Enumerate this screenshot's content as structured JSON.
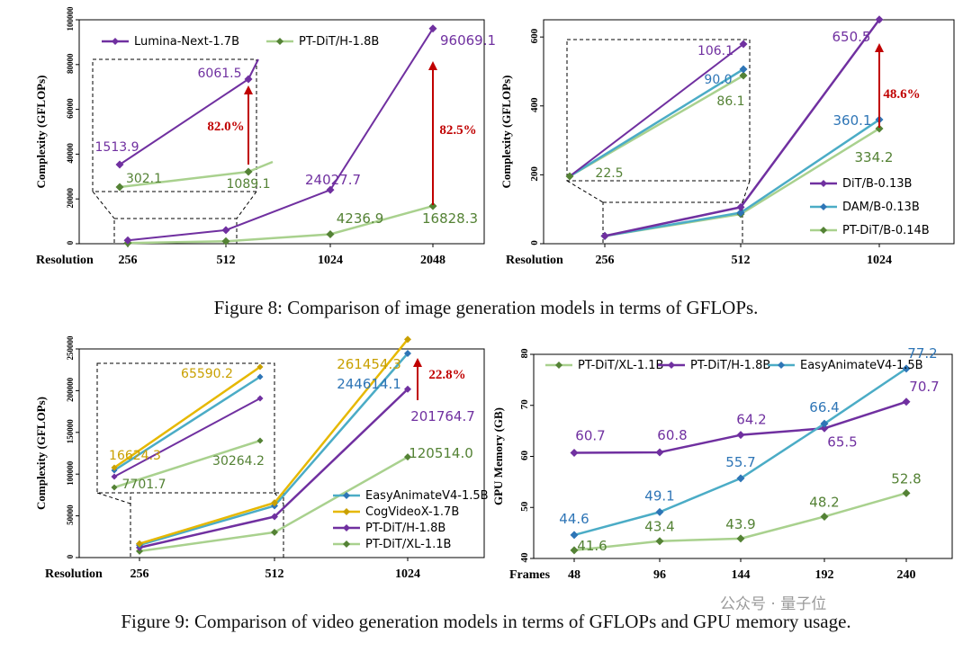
{
  "captions": {
    "fig8": "Figure 8: Comparison of image generation models in terms of GFLOPs.",
    "fig9": "Figure 9: Comparison of video generation models in terms of GFLOPs and GPU memory usage."
  },
  "watermark": {
    "text": "公众号 · 量子位"
  },
  "colors": {
    "purple": "#7030A0",
    "green": "#548235",
    "green_line": "#A9D18E",
    "blue": "#2E75B6",
    "teal_line": "#4BACC6",
    "gold": "#C9A000",
    "gold_line": "#E6B800",
    "red": "#C00000"
  },
  "chart_data": [
    {
      "id": "fig8-left",
      "type": "line",
      "ylabel": "Complexity (GFLOPs)",
      "x_axis_title": "Resolution",
      "categories": [
        "256",
        "512",
        "1024",
        "2048"
      ],
      "ylim": [
        0,
        100000
      ],
      "yticks": [
        "0",
        "20000",
        "40000",
        "60000",
        "80000",
        "100000"
      ],
      "legend_position": "top",
      "series": [
        {
          "name": "Lumina-Next-1.7B",
          "values": [
            1513.9,
            6061.5,
            24027.7,
            96069.1
          ],
          "labels": [
            "",
            "",
            "24027.7",
            "96069.1"
          ]
        },
        {
          "name": "PT-DiT/H-1.8B",
          "values": [
            302.1,
            1089.1,
            4236.9,
            16828.3
          ],
          "labels": [
            "",
            "",
            "4236.9",
            "16828.3"
          ]
        }
      ],
      "inset": {
        "purple_labels": [
          "1513.9",
          "6061.5"
        ],
        "green_labels": [
          "302.1",
          "1089.1"
        ],
        "gap_label": "82.0%"
      },
      "gap_label": "82.5%"
    },
    {
      "id": "fig8-right",
      "type": "line",
      "ylabel": "Complexity (GFLOPs)",
      "x_axis_title": "Resolution",
      "categories": [
        "256",
        "512",
        "1024"
      ],
      "ylim": [
        0,
        650
      ],
      "yticks": [
        "0",
        "200",
        "400",
        "600"
      ],
      "legend_position": "bottom-right",
      "series": [
        {
          "name": "DiT/B-0.13B",
          "values": [
            22.5,
            106.1,
            650.5
          ],
          "labels": [
            "",
            "",
            "650.5"
          ]
        },
        {
          "name": "DAM/B-0.13B",
          "values": [
            22.5,
            90.0,
            360.1
          ],
          "labels": [
            "",
            "",
            "360.1"
          ]
        },
        {
          "name": "PT-DiT/B-0.14B",
          "values": [
            22.5,
            86.1,
            334.2
          ],
          "labels": [
            "",
            "",
            "334.2"
          ]
        }
      ],
      "inset": {
        "labels": [
          "106.1",
          "90.0",
          "86.1",
          "22.5"
        ]
      },
      "gap_label": "48.6%"
    },
    {
      "id": "fig9-left",
      "type": "line",
      "ylabel": "Complexity (GFLOPs)",
      "x_axis_title": "Resolution",
      "categories": [
        "256",
        "512",
        "1024"
      ],
      "ylim": [
        0,
        250000
      ],
      "yticks": [
        "0",
        "50000",
        "100000",
        "150000",
        "200000",
        "250000"
      ],
      "legend_position": "bottom-right",
      "series": [
        {
          "name": "EasyAnimateV4-1.5B",
          "values": [
            15000,
            62000,
            244614.1
          ],
          "labels": [
            "",
            "",
            "244614.1"
          ]
        },
        {
          "name": "CogVideoX-1.7B",
          "values": [
            16624.3,
            65590.2,
            261454.3
          ],
          "labels": [
            "",
            "",
            "261454.3"
          ]
        },
        {
          "name": "PT-DiT/H-1.8B",
          "values": [
            12000,
            49000,
            201764.7
          ],
          "labels": [
            "",
            "",
            "201764.7"
          ]
        },
        {
          "name": "PT-DiT/XL-1.1B",
          "values": [
            7701.7,
            30264.2,
            120514.0
          ],
          "labels": [
            "",
            "",
            "120514.0"
          ]
        }
      ],
      "inset": {
        "labels": [
          "65590.2",
          "16624.3",
          "30264.2",
          "7701.7"
        ]
      },
      "gap_label": "22.8%"
    },
    {
      "id": "fig9-right",
      "type": "line",
      "ylabel": "GPU Memory (GB)",
      "x_axis_title": "Frames",
      "categories": [
        "48",
        "96",
        "144",
        "192",
        "240"
      ],
      "ylim": [
        40,
        80
      ],
      "yticks": [
        "40",
        "50",
        "60",
        "70",
        "80"
      ],
      "legend_position": "top",
      "series": [
        {
          "name": "PT-DiT/XL-1.1B",
          "values": [
            41.6,
            43.4,
            43.9,
            48.2,
            52.8
          ]
        },
        {
          "name": "PT-DiT/H-1.8B",
          "values": [
            60.7,
            60.8,
            64.2,
            65.5,
            70.7
          ]
        },
        {
          "name": "EasyAnimateV4-1.5B",
          "values": [
            44.6,
            49.1,
            55.7,
            66.4,
            77.2
          ]
        }
      ]
    }
  ]
}
